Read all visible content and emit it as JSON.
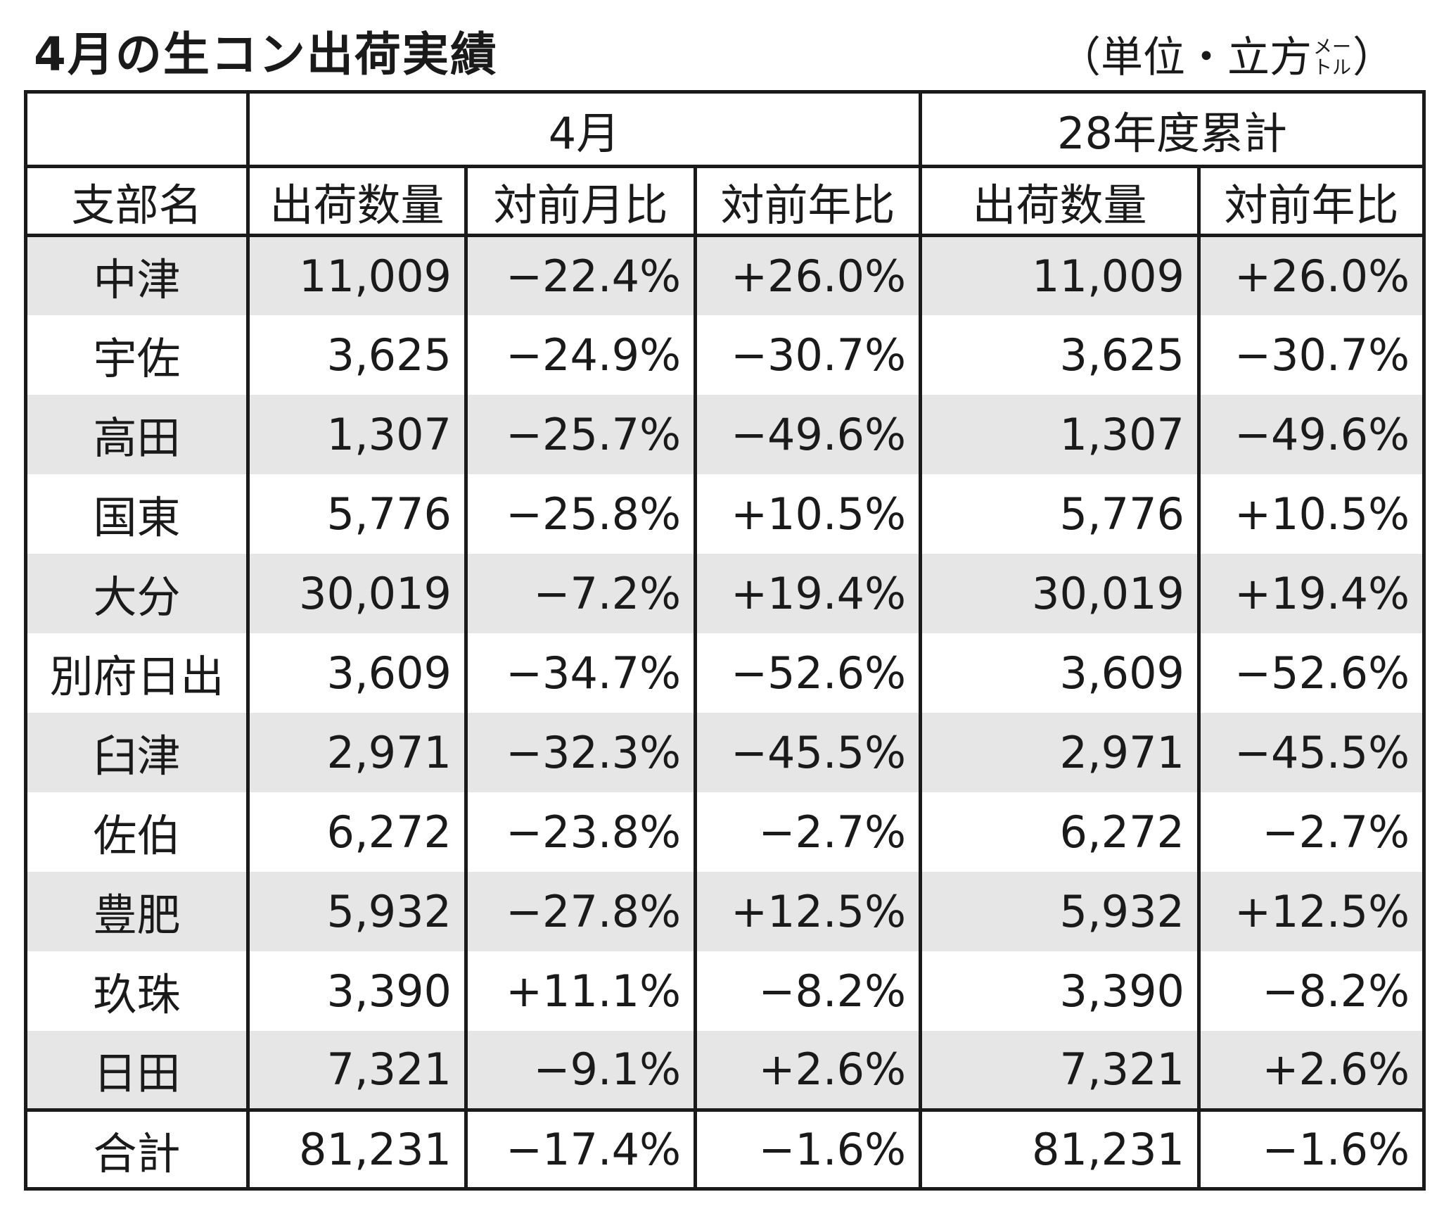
{
  "title": "4月の生コン出荷実績",
  "unit": {
    "open": "（単位・立方",
    "top": "メー",
    "bottom": "トル",
    "close": "）"
  },
  "header": {
    "group_month": "4月",
    "group_ytd": "28年度累計",
    "columns": [
      "支部名",
      "出荷数量",
      "対前月比",
      "対前年比",
      "出荷数量",
      "対前年比"
    ]
  },
  "rows": [
    {
      "name": "中津",
      "m_qty": "11,009",
      "m_mom": "−22.4%",
      "m_yoy": "+26.0%",
      "y_qty": "11,009",
      "y_yoy": "+26.0%"
    },
    {
      "name": "宇佐",
      "m_qty": "3,625",
      "m_mom": "−24.9%",
      "m_yoy": "−30.7%",
      "y_qty": "3,625",
      "y_yoy": "−30.7%"
    },
    {
      "name": "高田",
      "m_qty": "1,307",
      "m_mom": "−25.7%",
      "m_yoy": "−49.6%",
      "y_qty": "1,307",
      "y_yoy": "−49.6%"
    },
    {
      "name": "国東",
      "m_qty": "5,776",
      "m_mom": "−25.8%",
      "m_yoy": "+10.5%",
      "y_qty": "5,776",
      "y_yoy": "+10.5%"
    },
    {
      "name": "大分",
      "m_qty": "30,019",
      "m_mom": "−7.2%",
      "m_yoy": "+19.4%",
      "y_qty": "30,019",
      "y_yoy": "+19.4%"
    },
    {
      "name": "別府日出",
      "m_qty": "3,609",
      "m_mom": "−34.7%",
      "m_yoy": "−52.6%",
      "y_qty": "3,609",
      "y_yoy": "−52.6%"
    },
    {
      "name": "臼津",
      "m_qty": "2,971",
      "m_mom": "−32.3%",
      "m_yoy": "−45.5%",
      "y_qty": "2,971",
      "y_yoy": "−45.5%"
    },
    {
      "name": "佐伯",
      "m_qty": "6,272",
      "m_mom": "−23.8%",
      "m_yoy": "−2.7%",
      "y_qty": "6,272",
      "y_yoy": "−2.7%"
    },
    {
      "name": "豊肥",
      "m_qty": "5,932",
      "m_mom": "−27.8%",
      "m_yoy": "+12.5%",
      "y_qty": "5,932",
      "y_yoy": "+12.5%"
    },
    {
      "name": "玖珠",
      "m_qty": "3,390",
      "m_mom": "+11.1%",
      "m_yoy": "−8.2%",
      "y_qty": "3,390",
      "y_yoy": "−8.2%"
    },
    {
      "name": "日田",
      "m_qty": "7,321",
      "m_mom": "−9.1%",
      "m_yoy": "+2.6%",
      "y_qty": "7,321",
      "y_yoy": "+2.6%"
    }
  ],
  "total": {
    "name": "合計",
    "m_qty": "81,231",
    "m_mom": "−17.4%",
    "m_yoy": "−1.6%",
    "y_qty": "81,231",
    "y_yoy": "−1.6%"
  }
}
